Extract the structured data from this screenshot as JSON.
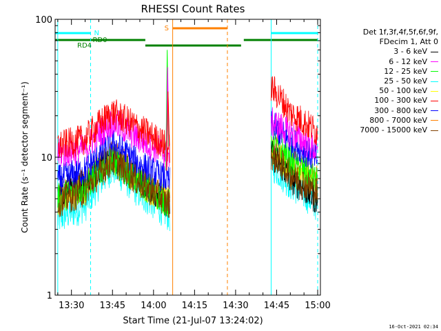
{
  "chart_data": {
    "type": "line",
    "title": "RHESSI Count Rates",
    "xlabel": "Start Time (21-Jul-07 13:24:02)",
    "ylabel": "Count Rate (s⁻¹ detector segment⁻¹)",
    "yscale": "log",
    "ylim": [
      1,
      100
    ],
    "xlim": [
      "13:24:02",
      "15:01:00"
    ],
    "x_ticks": [
      "13:30",
      "13:45",
      "14:00",
      "14:15",
      "14:30",
      "14:45",
      "15:00"
    ],
    "y_ticks": [
      "1",
      "10",
      "100"
    ],
    "grid": false,
    "legend_position": "right",
    "legend_header": [
      "Det 1f,3f,4f,5f,6f,9f,",
      "FDecim 1, Att 0"
    ],
    "series": [
      {
        "name": "3 - 6 keV",
        "color": "#000000",
        "x": [
          "13:25",
          "13:35",
          "13:45",
          "13:55",
          "14:06",
          "14:43",
          "14:50",
          "15:00"
        ],
        "y": [
          5.8,
          6.5,
          10.0,
          6.8,
          4.5,
          10.5,
          7.0,
          4.8
        ]
      },
      {
        "name": "6 - 12 keV",
        "color": "#ff00ff",
        "x": [
          "13:25",
          "13:35",
          "13:45",
          "13:55",
          "14:06",
          "14:43",
          "14:50",
          "15:00"
        ],
        "y": [
          10.5,
          11.5,
          18.0,
          13.5,
          10.0,
          18.0,
          15.0,
          11.0
        ]
      },
      {
        "name": "12 - 25 keV",
        "color": "#00ff00",
        "x": [
          "13:25",
          "13:35",
          "13:45",
          "13:55",
          "14:06",
          "14:43",
          "14:50",
          "15:00"
        ],
        "y": [
          5.0,
          6.0,
          9.5,
          6.5,
          4.5,
          13.0,
          9.5,
          6.5
        ]
      },
      {
        "name": "25 - 50 keV",
        "color": "#00ffff",
        "x": [
          "13:25",
          "13:35",
          "13:45",
          "13:55",
          "14:06",
          "14:43",
          "14:50",
          "15:00"
        ],
        "y": [
          3.6,
          4.5,
          8.5,
          5.5,
          3.8,
          9.0,
          6.5,
          4.5
        ]
      },
      {
        "name": "50 - 100 keV",
        "color": "#ffff00",
        "x": [
          "13:25",
          "13:35",
          "13:45",
          "13:55",
          "14:06",
          "14:43",
          "14:50",
          "15:00"
        ],
        "y": [
          4.8,
          5.8,
          9.8,
          6.5,
          4.6,
          11.0,
          8.0,
          6.0
        ]
      },
      {
        "name": "100 - 300 keV",
        "color": "#ff0000",
        "x": [
          "13:25",
          "13:35",
          "13:45",
          "13:55",
          "14:06",
          "14:43",
          "14:50",
          "15:00"
        ],
        "y": [
          12.0,
          13.5,
          21.0,
          16.0,
          11.5,
          32.0,
          21.0,
          15.0
        ]
      },
      {
        "name": "300 - 800 keV",
        "color": "#0000ff",
        "x": [
          "13:25",
          "13:35",
          "13:45",
          "13:55",
          "14:06",
          "14:43",
          "14:50",
          "15:00"
        ],
        "y": [
          6.8,
          8.0,
          12.5,
          8.8,
          6.6,
          17.0,
          13.0,
          9.5
        ]
      },
      {
        "name": "800 - 7000 keV",
        "color": "#ff8000",
        "x": [
          "13:25",
          "13:35",
          "13:45",
          "13:55",
          "14:06",
          "14:43",
          "14:50",
          "15:00"
        ],
        "y": [
          5.0,
          6.5,
          10.5,
          7.0,
          5.0,
          12.0,
          9.0,
          7.0
        ]
      },
      {
        "name": "7000 - 15000 keV",
        "color": "#804000",
        "x": [
          "13:25",
          "13:35",
          "13:45",
          "13:55",
          "14:06",
          "14:43",
          "14:50",
          "15:00"
        ],
        "y": [
          4.7,
          5.6,
          9.4,
          6.4,
          4.5,
          10.5,
          7.5,
          5.5
        ]
      }
    ],
    "annotations": {
      "labels": [
        {
          "text": "N",
          "color": "#00ffff"
        },
        {
          "text": "S",
          "color": "#ff8000"
        },
        {
          "text": "RD0",
          "color": "#008000"
        },
        {
          "text": "RD4",
          "color": "#008000"
        }
      ],
      "vertical_lines": [
        {
          "time": "13:25",
          "style": "solid",
          "color": "#00ffff"
        },
        {
          "time": "13:37",
          "style": "dashed",
          "color": "#00ffff"
        },
        {
          "time": "14:07",
          "style": "solid",
          "color": "#ff8000"
        },
        {
          "time": "14:27",
          "style": "dashed",
          "color": "#ff8000"
        },
        {
          "time": "14:43",
          "style": "solid",
          "color": "#00ffff"
        },
        {
          "time": "15:00",
          "style": "dashed",
          "color": "#00ffff"
        }
      ],
      "night_bars": [
        [
          "13:24",
          "13:37"
        ],
        [
          "14:43",
          "15:00"
        ]
      ],
      "saa_bar": [
        "14:07",
        "14:27"
      ],
      "decimation_bars": [
        [
          "13:24",
          "13:57"
        ],
        [
          "13:57",
          "14:27"
        ],
        [
          "14:27",
          "14:32"
        ],
        [
          "14:33",
          "15:00"
        ]
      ]
    }
  },
  "footer": {
    "timestamp": "16-Oct-2021 02:34"
  }
}
